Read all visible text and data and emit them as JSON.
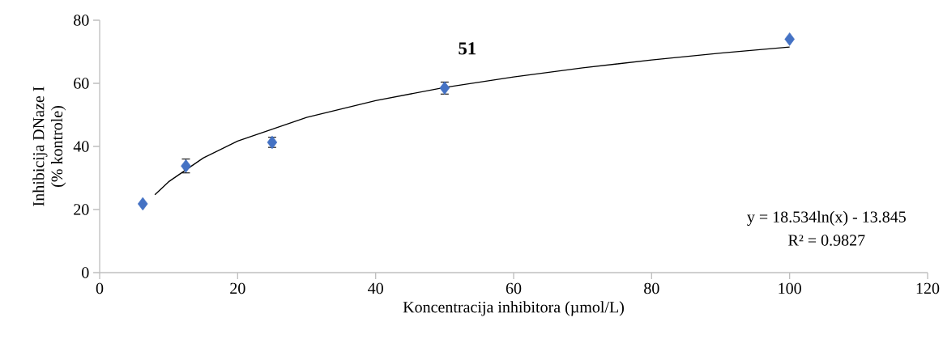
{
  "chart_data": {
    "type": "scatter",
    "title": "51",
    "xlabel": "Koncentracija inhibitora (µmol/L)",
    "ylabel": "Inhibicija DNaze I\n(% kontrole)",
    "xlim": [
      0,
      120
    ],
    "xticks": [
      0,
      20,
      40,
      60,
      80,
      100,
      120
    ],
    "ylim": [
      0,
      80
    ],
    "yticks": [
      0,
      20,
      40,
      60,
      80
    ],
    "marker": "diamond",
    "series": [
      {
        "color": "#4472c4",
        "x": [
          6.25,
          12.5,
          25,
          50,
          100
        ],
        "values": [
          21.8,
          33.8,
          41.3,
          58.5,
          74
        ],
        "errors": [
          null,
          2.2,
          1.6,
          1.9,
          null
        ]
      },
      {
        "type": "line",
        "color": "#000000",
        "marker": "none",
        "x": [
          8,
          10,
          15,
          20,
          30,
          40,
          50,
          60,
          70,
          80,
          90,
          100
        ],
        "values": [
          24.7,
          28.8,
          36.3,
          41.7,
          49.2,
          54.5,
          58.7,
          62.0,
          64.9,
          67.4,
          69.6,
          71.5
        ]
      }
    ],
    "annotations": [
      "y = 18.534ln(x) - 13.845",
      "R² = 0.9827"
    ]
  }
}
